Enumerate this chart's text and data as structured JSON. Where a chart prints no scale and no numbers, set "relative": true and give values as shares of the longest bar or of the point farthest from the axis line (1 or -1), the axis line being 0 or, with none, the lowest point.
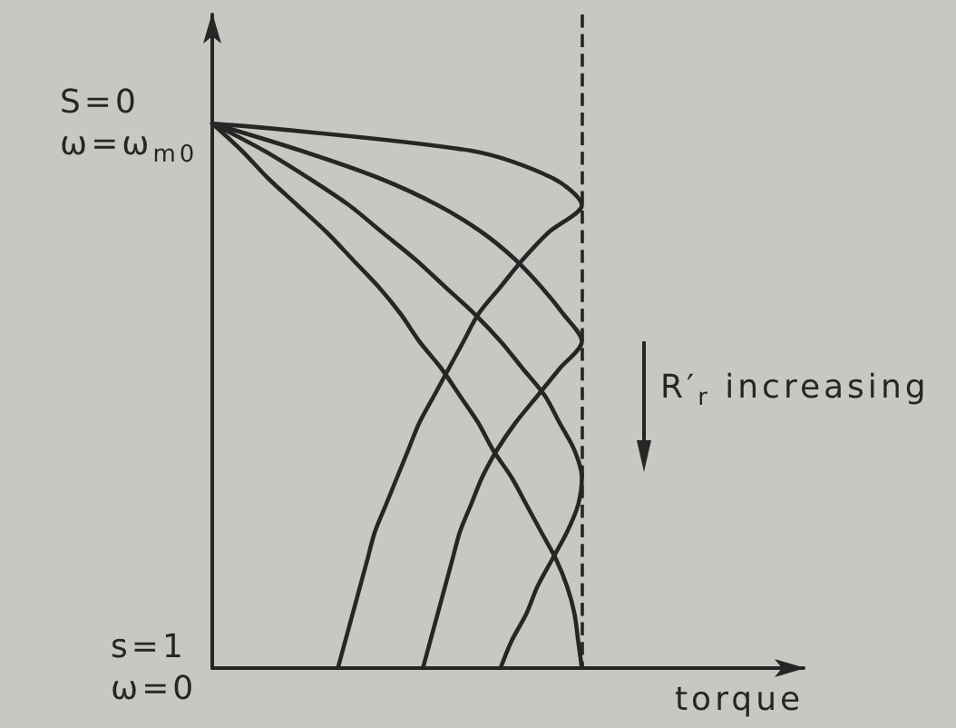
{
  "chart_data": {
    "type": "line",
    "orientation": "horizontal",
    "relative": true,
    "xlabel": "torque",
    "annotations": [
      "R′$_{r}$ increasing"
    ],
    "categories": [
      "S=0\nω=ω$_{m0}$",
      null,
      null,
      null,
      null,
      null,
      null,
      null,
      null,
      null,
      null,
      null,
      null,
      null,
      null,
      null,
      null,
      null,
      null,
      null,
      "s=1\nω=0"
    ],
    "series": [
      {
        "color": "#262626",
        "values": [
          0,
          0.7,
          0.92,
          1.0,
          0.91,
          0.84,
          0.78,
          0.72,
          0.68,
          0.64,
          0.6,
          0.56,
          0.53,
          0.5,
          0.47,
          0.44,
          0.42,
          0.4,
          0.38,
          0.36,
          0.34
        ]
      },
      {
        "color": "#262626",
        "values": [
          0,
          0.24,
          0.45,
          0.61,
          0.73,
          0.82,
          0.89,
          0.95,
          1.0,
          0.94,
          0.88,
          0.82,
          0.77,
          0.73,
          0.7,
          0.67,
          0.65,
          0.63,
          0.61,
          0.59,
          0.57
        ]
      },
      {
        "color": "#262626",
        "values": [
          0,
          0.14,
          0.26,
          0.37,
          0.46,
          0.55,
          0.63,
          0.71,
          0.78,
          0.84,
          0.9,
          0.94,
          0.98,
          1.0,
          0.99,
          0.96,
          0.92,
          0.88,
          0.85,
          0.81,
          0.78
        ]
      },
      {
        "color": "#262626",
        "values": [
          0,
          0.08,
          0.15,
          0.23,
          0.31,
          0.38,
          0.45,
          0.51,
          0.56,
          0.62,
          0.67,
          0.72,
          0.76,
          0.81,
          0.85,
          0.89,
          0.93,
          0.96,
          0.98,
          0.99,
          1.0
        ]
      }
    ],
    "tick_labels": "y",
    "marker": "none",
    "line_style": "solid",
    "ref_lines": [
      {
        "axis": "x",
        "value": 1,
        "line_style": "dashed",
        "color": "#262626"
      }
    ]
  }
}
